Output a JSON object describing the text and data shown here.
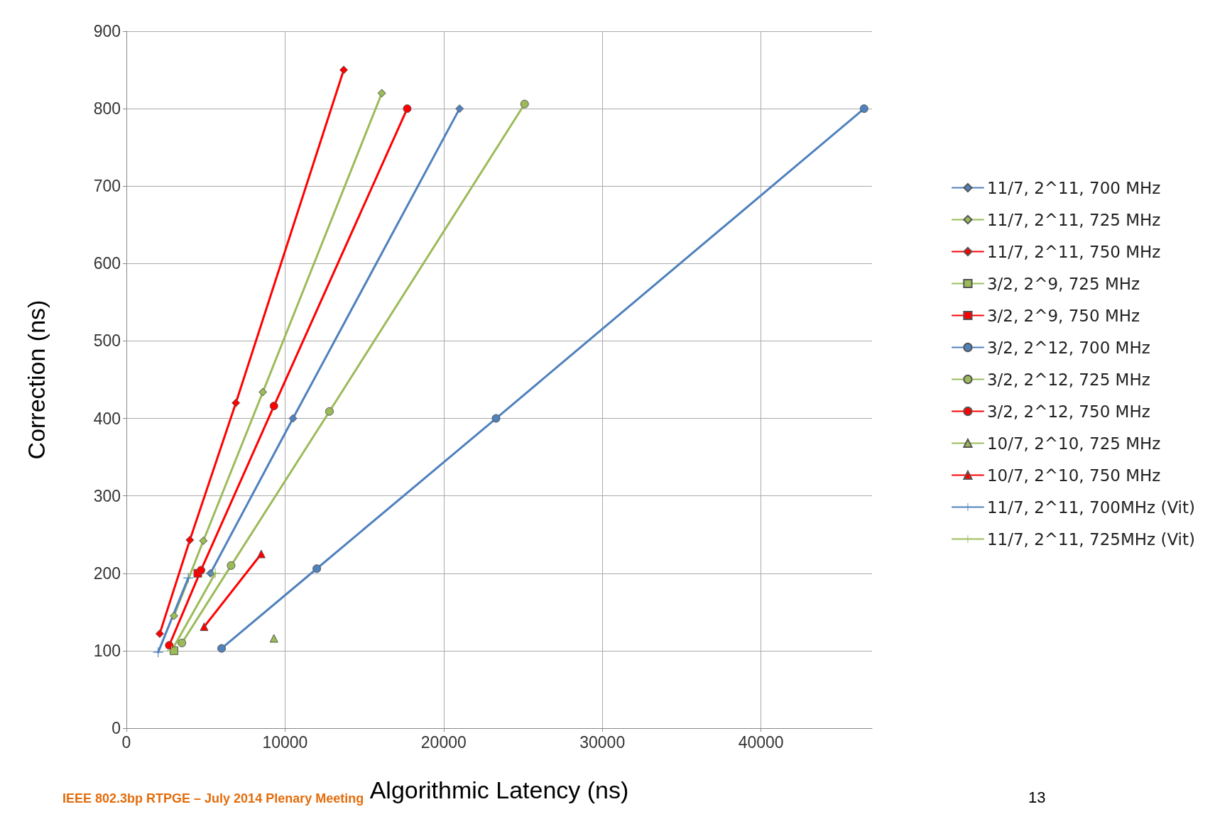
{
  "chart_data": {
    "type": "line",
    "xlabel": "Algorithmic Latency (ns)",
    "ylabel": "Correction (ns)",
    "xlim": [
      0,
      47000
    ],
    "xticks": [
      0,
      10000,
      20000,
      30000,
      40000
    ],
    "ylim": [
      0,
      900
    ],
    "yticks": [
      0,
      100,
      200,
      300,
      400,
      500,
      600,
      700,
      800,
      900
    ],
    "grid": true,
    "legend": "right",
    "line_style": "solid",
    "annotations": [
      "IEEE 802.3bp RTPGE – July 2014 Plenary Meeting",
      "13"
    ],
    "series": [
      {
        "name": "11/7, 2^11, 700 MHz",
        "color": "#4f81bd",
        "marker": "diamond",
        "x": [
          5300,
          10500,
          21000
        ],
        "values": [
          200,
          400,
          800
        ]
      },
      {
        "name": "11/7, 2^11, 725 MHz",
        "color": "#9bbb59",
        "marker": "diamond",
        "x": [
          3000,
          4850,
          8600,
          16100
        ],
        "values": [
          145,
          242,
          434,
          820
        ]
      },
      {
        "name": "11/7, 2^11, 750 MHz",
        "color": "#ff0000",
        "marker": "diamond",
        "x": [
          2100,
          4000,
          6900,
          13700
        ],
        "values": [
          122,
          243,
          420,
          850
        ]
      },
      {
        "name": "3/2, 2^9, 725 MHz",
        "color": "#9bbb59",
        "marker": "square",
        "x": [
          3000
        ],
        "values": [
          100
        ]
      },
      {
        "name": "3/2, 2^9, 750 MHz",
        "color": "#ff0000",
        "marker": "square",
        "x": [
          4500
        ],
        "values": [
          200
        ]
      },
      {
        "name": "3/2, 2^12, 700 MHz",
        "color": "#4f81bd",
        "marker": "circle",
        "x": [
          6000,
          12000,
          23300,
          46500
        ],
        "values": [
          103,
          206,
          400,
          800
        ]
      },
      {
        "name": "3/2, 2^12, 725 MHz",
        "color": "#9bbb59",
        "marker": "circle",
        "x": [
          3500,
          6600,
          12800,
          25100
        ],
        "values": [
          110,
          210,
          409,
          806
        ]
      },
      {
        "name": "3/2, 2^12, 750 MHz",
        "color": "#ff0000",
        "marker": "circle",
        "x": [
          2700,
          4700,
          9300,
          17700
        ],
        "values": [
          107,
          204,
          416,
          800
        ]
      },
      {
        "name": "10/7, 2^10, 725 MHz",
        "color": "#9bbb59",
        "marker": "triangle",
        "x": [
          9300
        ],
        "values": [
          116
        ]
      },
      {
        "name": "10/7, 2^10, 750 MHz",
        "color": "#ff0000",
        "marker": "triangle",
        "x": [
          4900,
          8500
        ],
        "values": [
          131,
          225
        ]
      },
      {
        "name": "11/7, 2^11, 700MHz (Vit)",
        "color": "#4f81bd",
        "marker": "cross",
        "x": [
          2000,
          3900
        ],
        "values": [
          98,
          194
        ]
      },
      {
        "name": "11/7, 2^11, 725MHz (Vit)",
        "color": "#9bbb59",
        "marker": "cross",
        "x": [
          2850,
          5600
        ],
        "values": [
          100,
          200
        ]
      }
    ]
  }
}
